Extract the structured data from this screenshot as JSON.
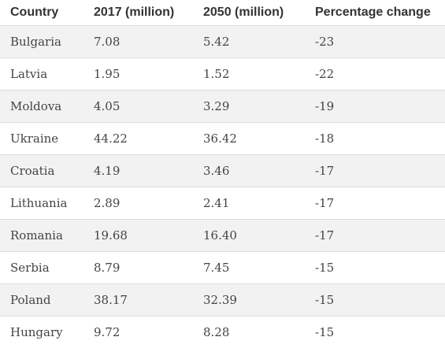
{
  "table": {
    "headers": [
      "Country",
      "2017 (million)",
      "2050 (million)",
      "Percentage change"
    ],
    "rows": [
      [
        "Bulgaria",
        "7.08",
        "5.42",
        "-23"
      ],
      [
        "Latvia",
        "1.95",
        "1.52",
        "-22"
      ],
      [
        "Moldova",
        "4.05",
        "3.29",
        "-19"
      ],
      [
        "Ukraine",
        "44.22",
        "36.42",
        "-18"
      ],
      [
        "Croatia",
        "4.19",
        "3.46",
        "-17"
      ],
      [
        "Lithuania",
        "2.89",
        "2.41",
        "-17"
      ],
      [
        "Romania",
        "19.68",
        "16.40",
        "-17"
      ],
      [
        "Serbia",
        "8.79",
        "7.45",
        "-15"
      ],
      [
        "Poland",
        "38.17",
        "32.39",
        "-15"
      ],
      [
        "Hungary",
        "9.72",
        "8.28",
        "-15"
      ]
    ]
  }
}
